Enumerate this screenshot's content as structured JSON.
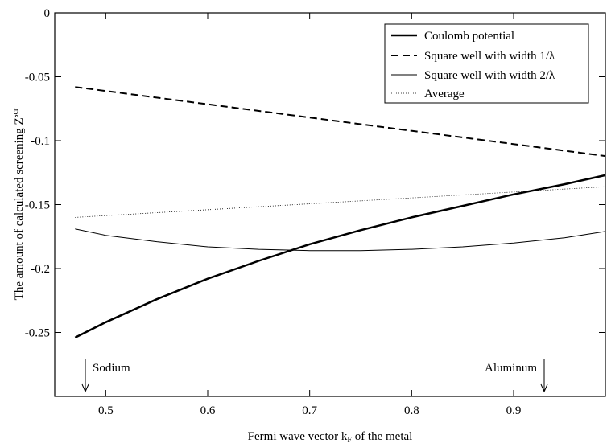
{
  "chart_data": {
    "type": "line",
    "xlabel": "Fermi wave vector k",
    "xlabel_sub": "F",
    "xlabel_tail": " of the metal",
    "ylabel": "The amount of calculated screening Z",
    "ylabel_sup": "scr",
    "xlim": [
      0.45,
      0.99
    ],
    "ylim": [
      -0.3,
      0
    ],
    "xticks": [
      {
        "value": 0.5,
        "label": "0.5"
      },
      {
        "value": 0.6,
        "label": "0.6"
      },
      {
        "value": 0.7,
        "label": "0.7"
      },
      {
        "value": 0.8,
        "label": "0.8"
      },
      {
        "value": 0.9,
        "label": "0.9"
      }
    ],
    "yticks": [
      {
        "value": 0,
        "label": "0"
      },
      {
        "value": -0.05,
        "label": "-0.05"
      },
      {
        "value": -0.1,
        "label": "-0.1"
      },
      {
        "value": -0.15,
        "label": "-0.15"
      },
      {
        "value": -0.2,
        "label": "-0.2"
      },
      {
        "value": -0.25,
        "label": "-0.25"
      }
    ],
    "legend_position": "top-right",
    "series": [
      {
        "name": "Coulomb potential",
        "style": "solid-thick",
        "x": [
          0.47,
          0.5,
          0.55,
          0.6,
          0.65,
          0.7,
          0.75,
          0.8,
          0.85,
          0.9,
          0.95,
          0.99
        ],
        "y": [
          -0.254,
          -0.242,
          -0.224,
          -0.208,
          -0.194,
          -0.181,
          -0.17,
          -0.16,
          -0.151,
          -0.142,
          -0.134,
          -0.127
        ]
      },
      {
        "name": "Square well with width 1/λ",
        "style": "dashed",
        "x": [
          0.47,
          0.99
        ],
        "y": [
          -0.058,
          -0.112
        ]
      },
      {
        "name": "Square well with width 2/λ",
        "style": "solid-thin",
        "x": [
          0.47,
          0.5,
          0.55,
          0.6,
          0.65,
          0.7,
          0.75,
          0.8,
          0.85,
          0.9,
          0.95,
          0.99
        ],
        "y": [
          -0.169,
          -0.174,
          -0.179,
          -0.183,
          -0.185,
          -0.186,
          -0.186,
          -0.185,
          -0.183,
          -0.18,
          -0.176,
          -0.171
        ]
      },
      {
        "name": "Average",
        "style": "dotted",
        "x": [
          0.47,
          0.99
        ],
        "y": [
          -0.16,
          -0.136
        ]
      }
    ],
    "annotations": [
      {
        "text": "Sodium",
        "x": 0.48
      },
      {
        "text": "Aluminum",
        "x": 0.93
      }
    ]
  }
}
